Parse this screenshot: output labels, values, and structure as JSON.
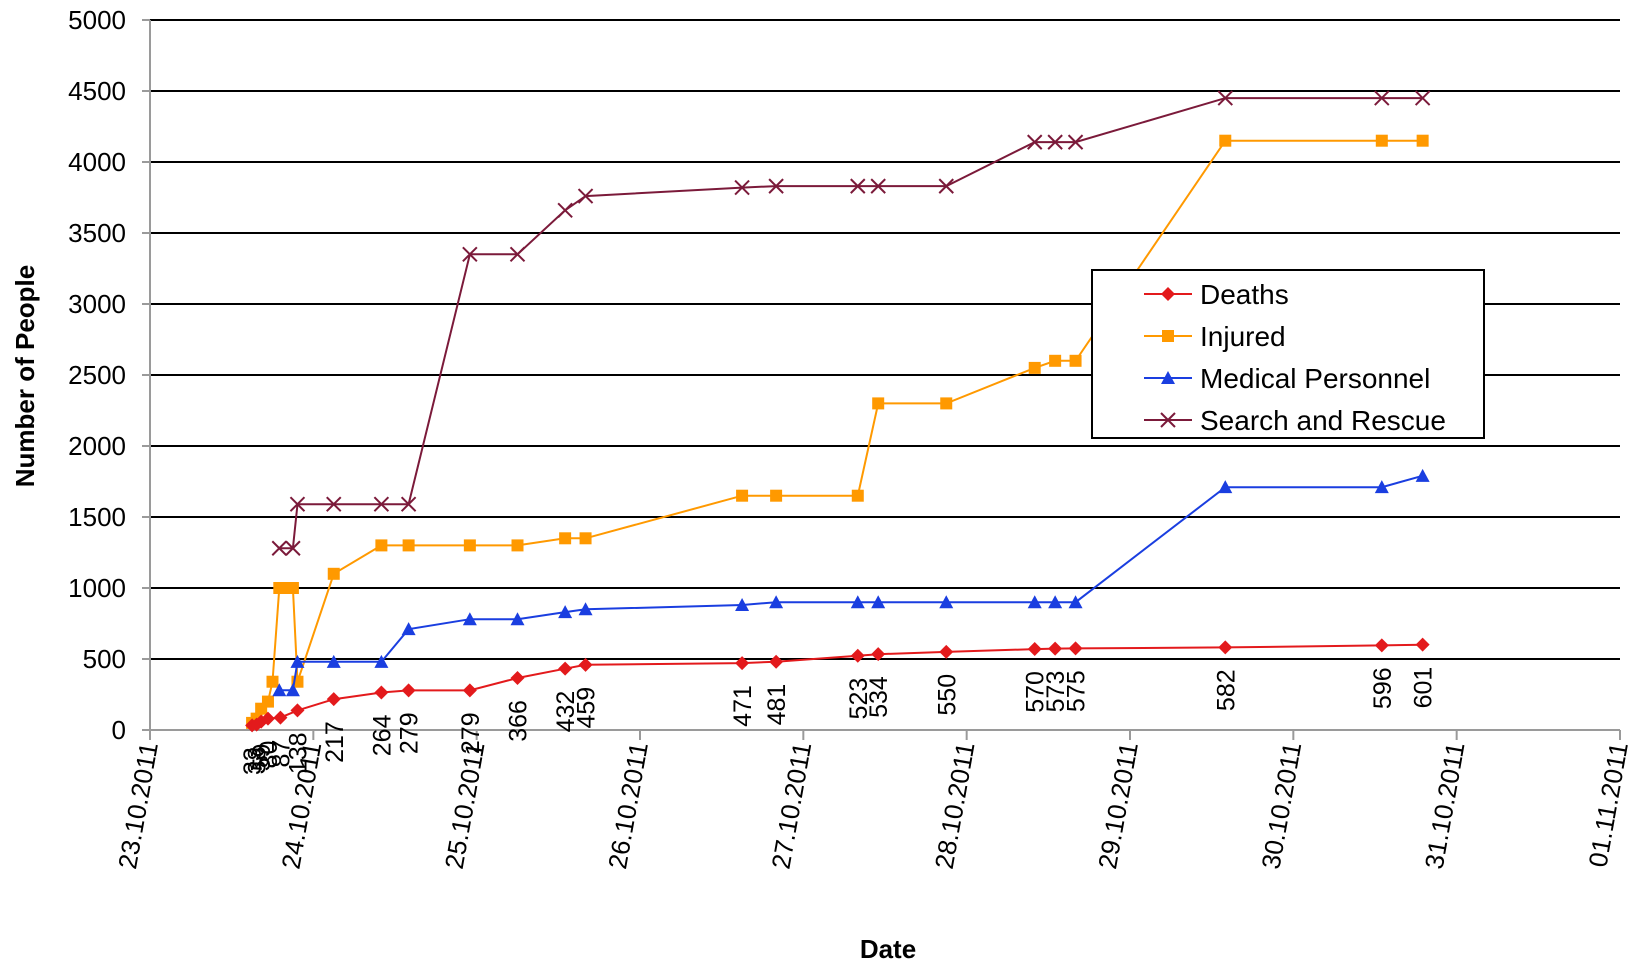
{
  "chart_data": {
    "type": "line",
    "title": "",
    "xlabel": "Date",
    "ylabel": "Number of People",
    "ylim": [
      0,
      5000
    ],
    "yticks": [
      0,
      500,
      1000,
      1500,
      2000,
      2500,
      3000,
      3500,
      4000,
      4500,
      5000
    ],
    "xlim": [
      "23.10.2011 00:00",
      "01.11.2011 00:00"
    ],
    "xticks": [
      "23.10.2011",
      "24.10.2011",
      "25.10.2011",
      "26.10.2011",
      "27.10.2011",
      "28.10.2011",
      "29.10.2011",
      "30.10.2011",
      "31.10.2011",
      "01.11.2011"
    ],
    "grid": "horizontal",
    "legend_position": "right",
    "series": [
      {
        "name": "Deaths",
        "color": "#e31a1c",
        "marker": "diamond",
        "points": [
          [
            "23.10.2011 15:00",
            33
          ],
          [
            "23.10.2011 15:40",
            38
          ],
          [
            "23.10.2011 16:20",
            59
          ],
          [
            "23.10.2011 17:20",
            80
          ],
          [
            "23.10.2011 19:10",
            87
          ],
          [
            "23.10.2011 21:40",
            138
          ],
          [
            "24.10.2011 03:00",
            217
          ],
          [
            "24.10.2011 10:00",
            264
          ],
          [
            "24.10.2011 14:00",
            279
          ],
          [
            "24.10.2011 23:00",
            279
          ],
          [
            "25.10.2011 06:00",
            366
          ],
          [
            "25.10.2011 13:00",
            432
          ],
          [
            "25.10.2011 16:00",
            459
          ],
          [
            "26.10.2011 15:00",
            471
          ],
          [
            "26.10.2011 20:00",
            481
          ],
          [
            "27.10.2011 08:00",
            523
          ],
          [
            "27.10.2011 11:00",
            534
          ],
          [
            "27.10.2011 21:00",
            550
          ],
          [
            "28.10.2011 10:00",
            570
          ],
          [
            "28.10.2011 13:00",
            573
          ],
          [
            "28.10.2011 16:00",
            575
          ],
          [
            "29.10.2011 14:00",
            582
          ],
          [
            "30.10.2011 13:00",
            596
          ],
          [
            "30.10.2011 19:00",
            601
          ]
        ],
        "data_labels": [
          "33",
          "38",
          "59",
          "80",
          "87",
          "138",
          "217",
          "264",
          "279",
          "279",
          "366",
          "432",
          "459",
          "471",
          "481",
          "523",
          "534",
          "550",
          "570",
          "573",
          "575",
          "582",
          "596",
          "601"
        ]
      },
      {
        "name": "Injured",
        "color": "#ff9900",
        "marker": "square",
        "points": [
          [
            "23.10.2011 15:00",
            50
          ],
          [
            "23.10.2011 15:40",
            80
          ],
          [
            "23.10.2011 16:20",
            150
          ],
          [
            "23.10.2011 17:20",
            200
          ],
          [
            "23.10.2011 18:00",
            340
          ],
          [
            "23.10.2011 19:00",
            1000
          ],
          [
            "23.10.2011 20:00",
            1000
          ],
          [
            "23.10.2011 21:00",
            1000
          ],
          [
            "23.10.2011 21:40",
            340
          ],
          [
            "24.10.2011 03:00",
            1100
          ],
          [
            "24.10.2011 10:00",
            1300
          ],
          [
            "24.10.2011 14:00",
            1300
          ],
          [
            "24.10.2011 23:00",
            1300
          ],
          [
            "25.10.2011 06:00",
            1300
          ],
          [
            "25.10.2011 13:00",
            1350
          ],
          [
            "25.10.2011 16:00",
            1350
          ],
          [
            "26.10.2011 15:00",
            1650
          ],
          [
            "26.10.2011 20:00",
            1650
          ],
          [
            "27.10.2011 08:00",
            1650
          ],
          [
            "27.10.2011 11:00",
            2300
          ],
          [
            "27.10.2011 21:00",
            2300
          ],
          [
            "28.10.2011 10:00",
            2550
          ],
          [
            "28.10.2011 13:00",
            2600
          ],
          [
            "28.10.2011 16:00",
            2600
          ],
          [
            "29.10.2011 14:00",
            4150
          ],
          [
            "30.10.2011 13:00",
            4150
          ],
          [
            "30.10.2011 19:00",
            4150
          ]
        ]
      },
      {
        "name": "Medical Personnel",
        "color": "#1a3ee0",
        "marker": "triangle",
        "points": [
          [
            "23.10.2011 19:00",
            280
          ],
          [
            "23.10.2011 21:00",
            280
          ],
          [
            "23.10.2011 21:40",
            480
          ],
          [
            "24.10.2011 03:00",
            480
          ],
          [
            "24.10.2011 10:00",
            480
          ],
          [
            "24.10.2011 14:00",
            710
          ],
          [
            "24.10.2011 23:00",
            780
          ],
          [
            "25.10.2011 06:00",
            780
          ],
          [
            "25.10.2011 13:00",
            830
          ],
          [
            "25.10.2011 16:00",
            850
          ],
          [
            "26.10.2011 15:00",
            880
          ],
          [
            "26.10.2011 20:00",
            900
          ],
          [
            "27.10.2011 08:00",
            900
          ],
          [
            "27.10.2011 11:00",
            900
          ],
          [
            "27.10.2011 21:00",
            900
          ],
          [
            "28.10.2011 10:00",
            900
          ],
          [
            "28.10.2011 13:00",
            900
          ],
          [
            "28.10.2011 16:00",
            900
          ],
          [
            "29.10.2011 14:00",
            1710
          ],
          [
            "30.10.2011 13:00",
            1710
          ],
          [
            "30.10.2011 19:00",
            1790
          ]
        ]
      },
      {
        "name": "Search and Rescue",
        "color": "#7b1a3a",
        "marker": "x",
        "points": [
          [
            "23.10.2011 19:00",
            1280
          ],
          [
            "23.10.2011 21:00",
            1280
          ],
          [
            "23.10.2011 21:40",
            1590
          ],
          [
            "24.10.2011 03:00",
            1590
          ],
          [
            "24.10.2011 10:00",
            1590
          ],
          [
            "24.10.2011 14:00",
            1590
          ],
          [
            "24.10.2011 23:00",
            3350
          ],
          [
            "25.10.2011 06:00",
            3350
          ],
          [
            "25.10.2011 13:00",
            3660
          ],
          [
            "25.10.2011 16:00",
            3760
          ],
          [
            "26.10.2011 15:00",
            3820
          ],
          [
            "26.10.2011 20:00",
            3830
          ],
          [
            "27.10.2011 08:00",
            3830
          ],
          [
            "27.10.2011 11:00",
            3830
          ],
          [
            "27.10.2011 21:00",
            3830
          ],
          [
            "28.10.2011 10:00",
            4140
          ],
          [
            "28.10.2011 13:00",
            4140
          ],
          [
            "28.10.2011 16:00",
            4140
          ],
          [
            "29.10.2011 14:00",
            4450
          ],
          [
            "30.10.2011 13:00",
            4450
          ],
          [
            "30.10.2011 19:00",
            4450
          ]
        ]
      }
    ]
  }
}
